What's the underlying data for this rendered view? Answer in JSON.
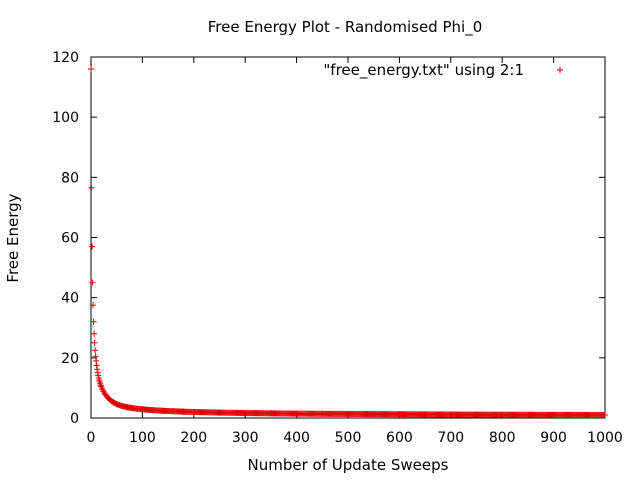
{
  "chart_data": {
    "type": "scatter",
    "title": "Free Energy Plot - Randomised Phi_0",
    "xlabel": "Number of Update Sweeps",
    "ylabel": "Free Energy",
    "xlim": [
      0,
      1000
    ],
    "ylim": [
      0,
      120
    ],
    "x_ticks": [
      0,
      100,
      200,
      300,
      400,
      500,
      600,
      700,
      800,
      900,
      1000
    ],
    "y_ticks": [
      0,
      20,
      40,
      60,
      80,
      100,
      120
    ],
    "grid": false,
    "legend_position": "top-right",
    "marker": "plus",
    "colors": {
      "series": "#e00000",
      "axes": "#000000"
    },
    "series": [
      {
        "name": "\"free_energy.txt\" using 2:1",
        "x": [
          0,
          1,
          2,
          3,
          4,
          5,
          6,
          7,
          8,
          9,
          10,
          11,
          12,
          13,
          14,
          15,
          16,
          17,
          18,
          19,
          20,
          22,
          24,
          26,
          28,
          30,
          33,
          36,
          40,
          45,
          50,
          55,
          60,
          70,
          80,
          90,
          100,
          120,
          140,
          160,
          180,
          200,
          250,
          300,
          350,
          400,
          450,
          500,
          550,
          600,
          650,
          700,
          750,
          800,
          850,
          900,
          950,
          1000
        ],
        "y": [
          116,
          76.5,
          57,
          45,
          37.5,
          32,
          28,
          25,
          22.5,
          20.5,
          19,
          17.5,
          16.2,
          15.1,
          14.1,
          13.3,
          12.6,
          12,
          11.4,
          10.9,
          10.4,
          9.6,
          8.9,
          8.3,
          7.8,
          7.3,
          6.7,
          6.2,
          5.6,
          5.1,
          4.6,
          4.3,
          4,
          3.6,
          3.3,
          3.1,
          2.9,
          2.6,
          2.4,
          2.25,
          2.1,
          2,
          1.8,
          1.65,
          1.55,
          1.45,
          1.4,
          1.35,
          1.3,
          1.25,
          1.2,
          1.15,
          1.12,
          1.1,
          1.07,
          1.05,
          1.03,
          1.0
        ]
      }
    ]
  }
}
